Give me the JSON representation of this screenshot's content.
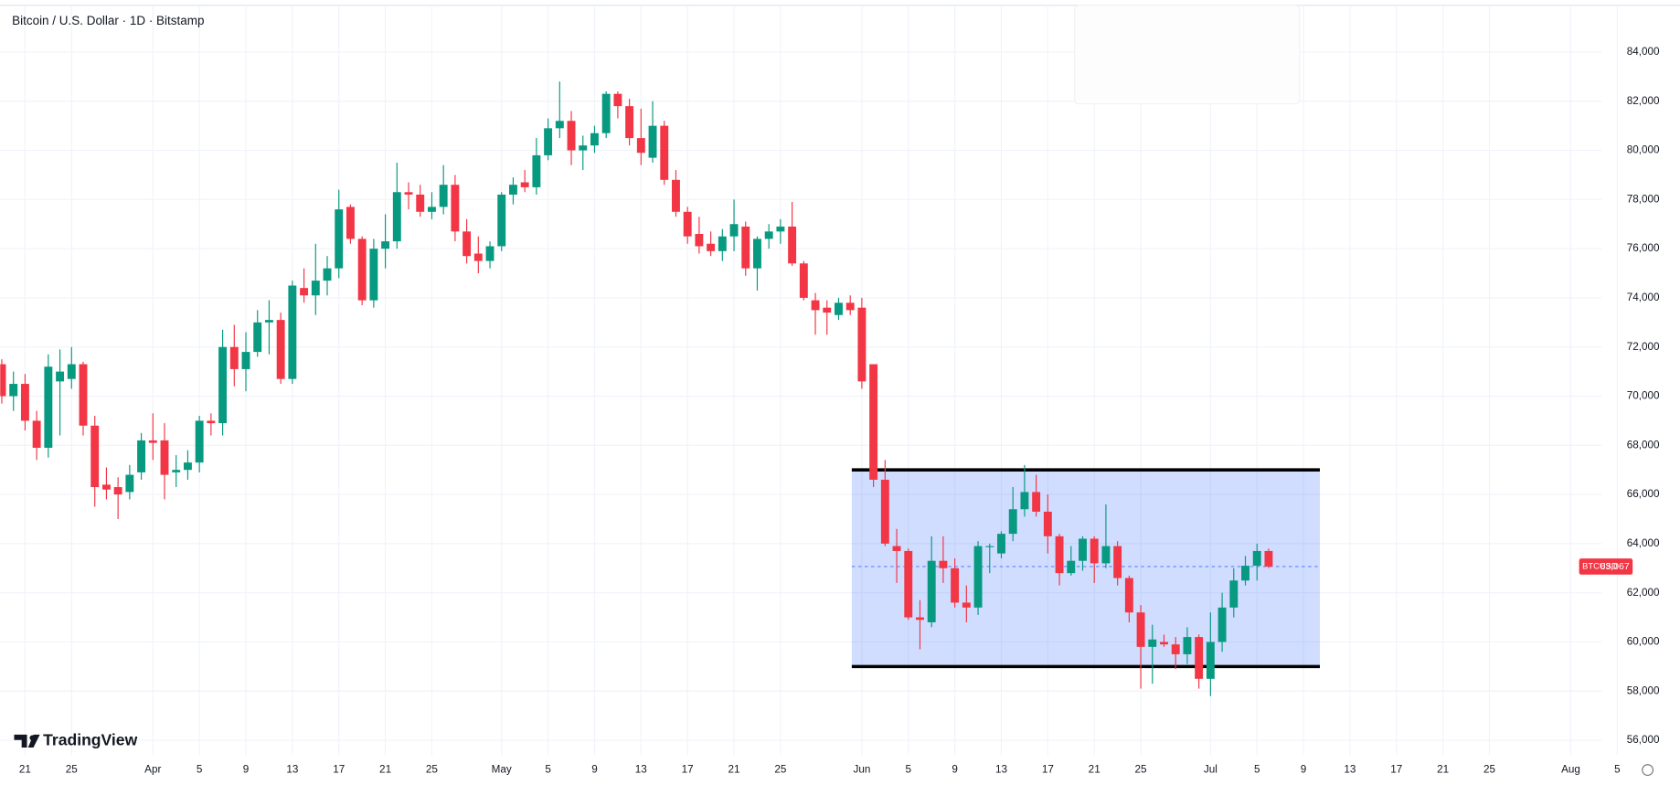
{
  "chart_data": {
    "type": "candlestick",
    "title": "Bitcoin / U.S. Dollar · 1D · Bitstamp",
    "logo": "TradingView",
    "up_color": "#089981",
    "down_color": "#f23645",
    "grid": true,
    "categories": [
      null,
      null,
      "21",
      null,
      null,
      null,
      "25",
      null,
      null,
      null,
      null,
      null,
      null,
      "Apr",
      null,
      null,
      null,
      "5",
      null,
      null,
      null,
      "9",
      null,
      null,
      null,
      "13",
      null,
      null,
      null,
      "17",
      null,
      null,
      null,
      "21",
      null,
      null,
      null,
      "25",
      null,
      null,
      null,
      null,
      null,
      "May",
      null,
      null,
      null,
      "5",
      null,
      null,
      null,
      "9",
      null,
      null,
      null,
      "13",
      null,
      null,
      null,
      "17",
      null,
      null,
      null,
      "21",
      null,
      null,
      null,
      "25",
      null,
      null,
      null,
      null,
      null,
      null,
      "Jun",
      null,
      null,
      null,
      "5",
      null,
      null,
      null,
      "9",
      null,
      null,
      null,
      "13",
      null,
      null,
      null,
      "17",
      null,
      null,
      null,
      "21",
      null,
      null,
      null,
      "25",
      null,
      null,
      null,
      null,
      null,
      "Jul",
      null,
      null,
      null,
      "5",
      null,
      null,
      null,
      "9",
      null,
      null,
      null,
      "13",
      null,
      null,
      null,
      "17",
      null,
      null,
      null,
      "21",
      null,
      null,
      null,
      "25",
      null,
      null,
      null,
      null,
      null,
      null,
      "Aug",
      null,
      null,
      null,
      "5"
    ],
    "open": [
      71300,
      70000,
      70500,
      69000,
      67900,
      70600,
      70700,
      71300,
      68800,
      66400,
      66300,
      66100,
      66900,
      68200,
      68200,
      66900,
      67000,
      67300,
      69000,
      68900,
      72000,
      71100,
      71800,
      73000,
      73100,
      70700,
      74400,
      74100,
      74700,
      75200,
      77700,
      76400,
      73900,
      76000,
      76300,
      78300,
      78200,
      77500,
      77700,
      78600,
      76700,
      75800,
      75500,
      76100,
      78200,
      78700,
      78500,
      79800,
      80900,
      81200,
      80000,
      80200,
      80700,
      82300,
      81800,
      80500,
      79700,
      81000,
      78800,
      77500,
      76600,
      76200,
      75900,
      76500,
      76900,
      75200,
      76400,
      76700,
      76900,
      75400,
      73900,
      73600,
      73300,
      73800,
      73600,
      71300,
      66600,
      63900,
      63700,
      61000,
      60800,
      63300,
      63000,
      61600,
      61400,
      63900,
      63600,
      64400,
      65400,
      66100,
      65300,
      64300,
      62800,
      63300,
      64200,
      63200,
      63900,
      62600,
      61200,
      59800,
      60000,
      59900,
      59500,
      60200,
      58500,
      60000,
      61400,
      62500,
      63100,
      63700,
      null,
      null,
      null,
      null,
      null,
      null,
      null,
      null,
      null,
      null,
      null,
      null,
      null,
      null,
      null,
      null,
      null,
      null,
      null,
      null,
      null,
      null,
      null,
      null,
      null,
      null,
      null,
      null,
      null,
      null
    ],
    "high": [
      71500,
      71000,
      70900,
      69400,
      71700,
      71900,
      72000,
      71400,
      69200,
      67100,
      66700,
      67200,
      68500,
      69300,
      68900,
      67600,
      67800,
      69200,
      69300,
      72700,
      72900,
      72600,
      73500,
      73900,
      73400,
      74700,
      75200,
      76200,
      75700,
      78400,
      77800,
      76500,
      76400,
      77400,
      79500,
      78700,
      78600,
      78300,
      79400,
      79000,
      77200,
      76500,
      76300,
      78300,
      78900,
      79200,
      80500,
      81300,
      82800,
      81600,
      80600,
      81000,
      82400,
      82400,
      82100,
      81700,
      82000,
      81200,
      79200,
      77700,
      77300,
      76700,
      76800,
      78000,
      77100,
      76500,
      77000,
      77200,
      77900,
      75500,
      74200,
      73900,
      74000,
      74100,
      74000,
      71300,
      67400,
      64600,
      63800,
      61700,
      64300,
      64300,
      63400,
      62300,
      64100,
      64000,
      64500,
      66300,
      67200,
      66800,
      66000,
      64400,
      63900,
      64300,
      64300,
      65600,
      64100,
      62700,
      61500,
      60700,
      60300,
      60200,
      60600,
      60300,
      61200,
      62000,
      63000,
      63500,
      64000,
      63800,
      null,
      null,
      null,
      null,
      null,
      null,
      null,
      null,
      null,
      null,
      null,
      null,
      null,
      null,
      null,
      null,
      null,
      null,
      null,
      null,
      null,
      null,
      null,
      null,
      null,
      null,
      null,
      null,
      null,
      null
    ],
    "low": [
      69700,
      69400,
      68600,
      67400,
      67500,
      68400,
      70300,
      68400,
      65500,
      65800,
      65000,
      65800,
      66600,
      67400,
      65800,
      66300,
      66600,
      66900,
      68400,
      68400,
      70400,
      70200,
      71600,
      71700,
      70500,
      70500,
      73800,
      73300,
      74100,
      74800,
      76200,
      73700,
      73600,
      75200,
      76000,
      77600,
      77300,
      77200,
      77400,
      76300,
      75400,
      75000,
      75200,
      75900,
      77800,
      78300,
      78200,
      79600,
      80500,
      79400,
      79200,
      79900,
      80500,
      81300,
      80200,
      79400,
      79500,
      78600,
      77300,
      76200,
      75800,
      75700,
      75500,
      75900,
      74900,
      74300,
      76000,
      76200,
      75300,
      73900,
      72500,
      72500,
      73100,
      73300,
      70300,
      66300,
      63900,
      62400,
      60900,
      59700,
      60600,
      62400,
      61400,
      60800,
      61100,
      62800,
      63400,
      64100,
      65100,
      65100,
      63600,
      62300,
      62700,
      62900,
      62400,
      63000,
      62300,
      60800,
      58100,
      58300,
      59800,
      58900,
      59100,
      58100,
      57800,
      59600,
      61000,
      62300,
      62500,
      63000,
      null,
      null,
      null,
      null,
      null,
      null,
      null,
      null,
      null,
      null,
      null,
      null,
      null,
      null,
      null,
      null,
      null,
      null,
      null,
      null,
      null,
      null,
      null,
      null,
      null,
      null,
      null,
      null,
      null,
      null
    ],
    "close": [
      70000,
      70500,
      69000,
      67900,
      71200,
      71000,
      71300,
      68800,
      66300,
      66200,
      66000,
      66800,
      68200,
      68100,
      66800,
      67000,
      67300,
      69000,
      68900,
      72000,
      71100,
      71800,
      73000,
      73100,
      70700,
      74500,
      74100,
      74700,
      75200,
      77600,
      76400,
      73900,
      76000,
      76300,
      78300,
      78200,
      77500,
      77700,
      78600,
      76700,
      75700,
      75500,
      76100,
      78200,
      78600,
      78500,
      79800,
      80900,
      81200,
      80000,
      80200,
      80700,
      82300,
      81800,
      80500,
      79900,
      81000,
      78800,
      77500,
      76500,
      76100,
      75900,
      76500,
      77000,
      75200,
      76400,
      76700,
      76900,
      75400,
      74000,
      73500,
      73400,
      73800,
      73500,
      70600,
      66600,
      64000,
      63700,
      61000,
      60900,
      63300,
      63000,
      61600,
      61400,
      63900,
      63900,
      64400,
      65400,
      66100,
      65300,
      64300,
      62800,
      63300,
      64200,
      63200,
      63900,
      62600,
      61200,
      59800,
      60100,
      59900,
      59500,
      60200,
      58500,
      60000,
      61400,
      62500,
      63100,
      63700,
      63067,
      null,
      null,
      null,
      null,
      null,
      null,
      null,
      null,
      null,
      null,
      null,
      null,
      null,
      null,
      null,
      null,
      null,
      null,
      null,
      null,
      null,
      null,
      null,
      null,
      null,
      null,
      null,
      null,
      null,
      null
    ],
    "ylim": [
      55400,
      85900
    ],
    "yticks": [
      {
        "value": 56000,
        "label": "56,000"
      },
      {
        "value": 58000,
        "label": "58,000"
      },
      {
        "value": 60000,
        "label": "60,000"
      },
      {
        "value": 62000,
        "label": "62,000"
      },
      {
        "value": 64000,
        "label": "64,000"
      },
      {
        "value": 66000,
        "label": "66,000"
      },
      {
        "value": 68000,
        "label": "68,000"
      },
      {
        "value": 70000,
        "label": "70,000"
      },
      {
        "value": 72000,
        "label": "72,000"
      },
      {
        "value": 74000,
        "label": "74,000"
      },
      {
        "value": 76000,
        "label": "76,000"
      },
      {
        "value": 78000,
        "label": "78,000"
      },
      {
        "value": 80000,
        "label": "80,000"
      },
      {
        "value": 82000,
        "label": "82,000"
      },
      {
        "value": 84000,
        "label": "84,000"
      }
    ],
    "range_box": {
      "high": 67000,
      "low": 59000,
      "color": "#2962ff"
    },
    "last_price": {
      "symbol": "BTCUSD",
      "value": 63067,
      "label": "63,067"
    }
  }
}
